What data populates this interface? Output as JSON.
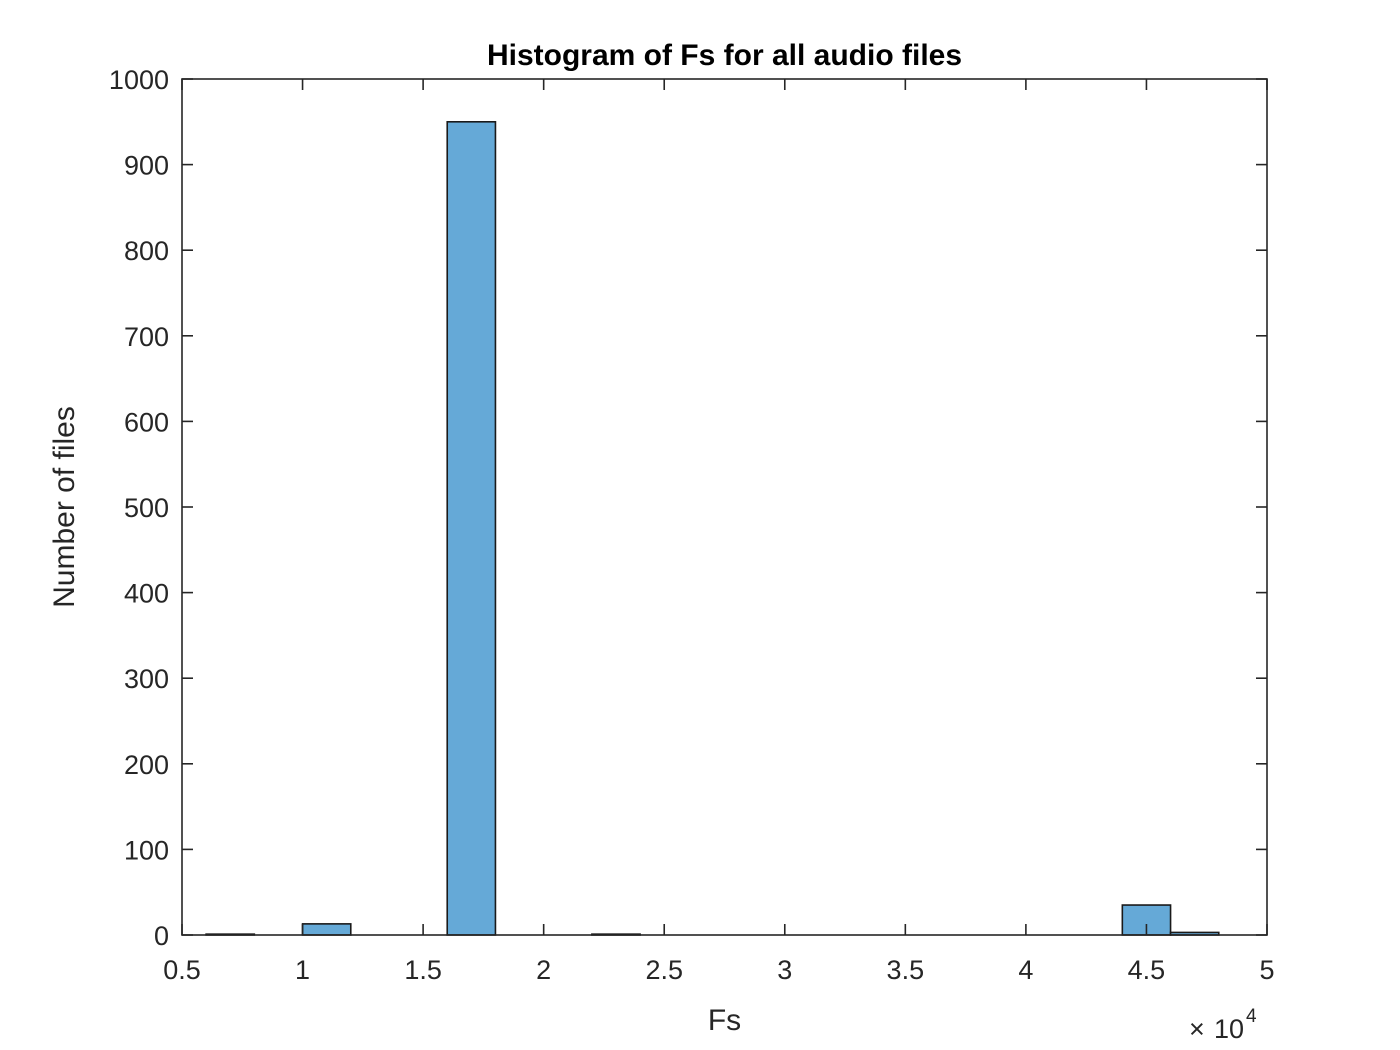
{
  "chart_data": {
    "type": "bar",
    "title": "Histogram of Fs for all audio files",
    "xlabel": "Fs",
    "ylabel": "Number of files",
    "x_exponent_label": {
      "base": "10",
      "power": "4"
    },
    "xlim": [
      0.5,
      5
    ],
    "ylim": [
      0,
      1000
    ],
    "xticks": [
      "0.5",
      "1",
      "1.5",
      "2",
      "2.5",
      "3",
      "3.5",
      "4",
      "4.5",
      "5"
    ],
    "yticks": [
      "0",
      "100",
      "200",
      "300",
      "400",
      "500",
      "600",
      "700",
      "800",
      "900",
      "1000"
    ],
    "bin_width": 0.2,
    "bins": [
      {
        "start": 0.6,
        "end": 0.8,
        "count": 1
      },
      {
        "start": 0.8,
        "end": 1.0,
        "count": 0
      },
      {
        "start": 1.0,
        "end": 1.2,
        "count": 13
      },
      {
        "start": 1.2,
        "end": 1.4,
        "count": 0
      },
      {
        "start": 1.4,
        "end": 1.6,
        "count": 0
      },
      {
        "start": 1.6,
        "end": 1.8,
        "count": 950
      },
      {
        "start": 1.8,
        "end": 2.0,
        "count": 0
      },
      {
        "start": 2.0,
        "end": 2.2,
        "count": 0
      },
      {
        "start": 2.2,
        "end": 2.4,
        "count": 1
      },
      {
        "start": 2.4,
        "end": 2.6,
        "count": 0
      },
      {
        "start": 2.6,
        "end": 2.8,
        "count": 0
      },
      {
        "start": 2.8,
        "end": 3.0,
        "count": 0
      },
      {
        "start": 3.0,
        "end": 3.2,
        "count": 0
      },
      {
        "start": 3.2,
        "end": 3.4,
        "count": 0
      },
      {
        "start": 3.4,
        "end": 3.6,
        "count": 0
      },
      {
        "start": 3.6,
        "end": 3.8,
        "count": 0
      },
      {
        "start": 3.8,
        "end": 4.0,
        "count": 0
      },
      {
        "start": 4.0,
        "end": 4.2,
        "count": 0
      },
      {
        "start": 4.2,
        "end": 4.4,
        "count": 0
      },
      {
        "start": 4.4,
        "end": 4.6,
        "count": 35
      },
      {
        "start": 4.6,
        "end": 4.8,
        "count": 3
      }
    ],
    "grid": false,
    "legend": "none",
    "colors": {
      "bar_fill": "#65a9d7",
      "bar_edge": "#1a1a1a",
      "axis": "#262626"
    }
  }
}
